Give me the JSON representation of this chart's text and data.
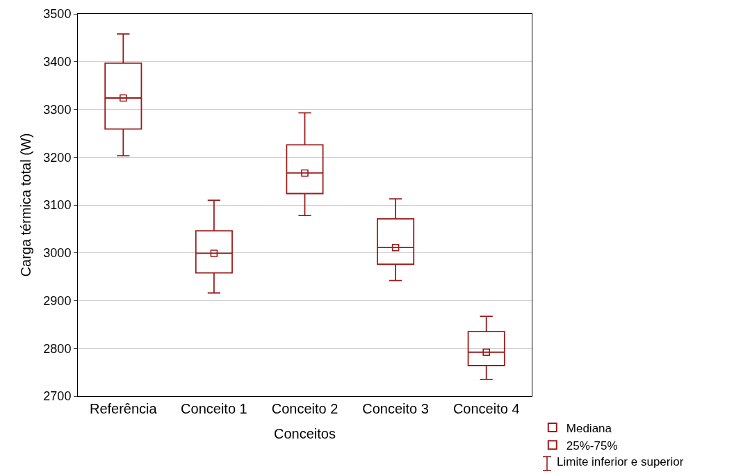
{
  "chart_data": {
    "type": "box",
    "xlabel": "Conceitos",
    "ylabel": "Carga térmica total (W)",
    "categories": [
      "Referência",
      "Conceito 1",
      "Conceito 2",
      "Conceito 3",
      "Conceito 4"
    ],
    "ylim": [
      2700,
      3500
    ],
    "yticks": [
      2700,
      2800,
      2900,
      3000,
      3100,
      3200,
      3300,
      3400,
      3500
    ],
    "grid": "y",
    "legend": "bottom right",
    "series": [
      {
        "name": "Mediana",
        "type": "scatter",
        "marker": "square",
        "color": "#9b1c1c",
        "values": [
          3324,
          2999,
          3167,
          3011,
          2792
        ]
      },
      {
        "name": "25%-75%",
        "type": "box",
        "color": "#9b1c1c",
        "boxes": [
          {
            "low": 3203,
            "q1": 3259,
            "median": 3324,
            "q3": 3397,
            "high": 3458
          },
          {
            "low": 2916,
            "q1": 2958,
            "median": 2999,
            "q3": 3046,
            "high": 3110
          },
          {
            "low": 3078,
            "q1": 3124,
            "median": 3167,
            "q3": 3226,
            "high": 3293
          },
          {
            "low": 2942,
            "q1": 2976,
            "median": 3011,
            "q3": 3071,
            "high": 3113
          },
          {
            "low": 2735,
            "q1": 2764,
            "median": 2792,
            "q3": 2835,
            "high": 2867
          }
        ]
      }
    ],
    "annotations": [
      "Limite inferior e superior"
    ]
  }
}
